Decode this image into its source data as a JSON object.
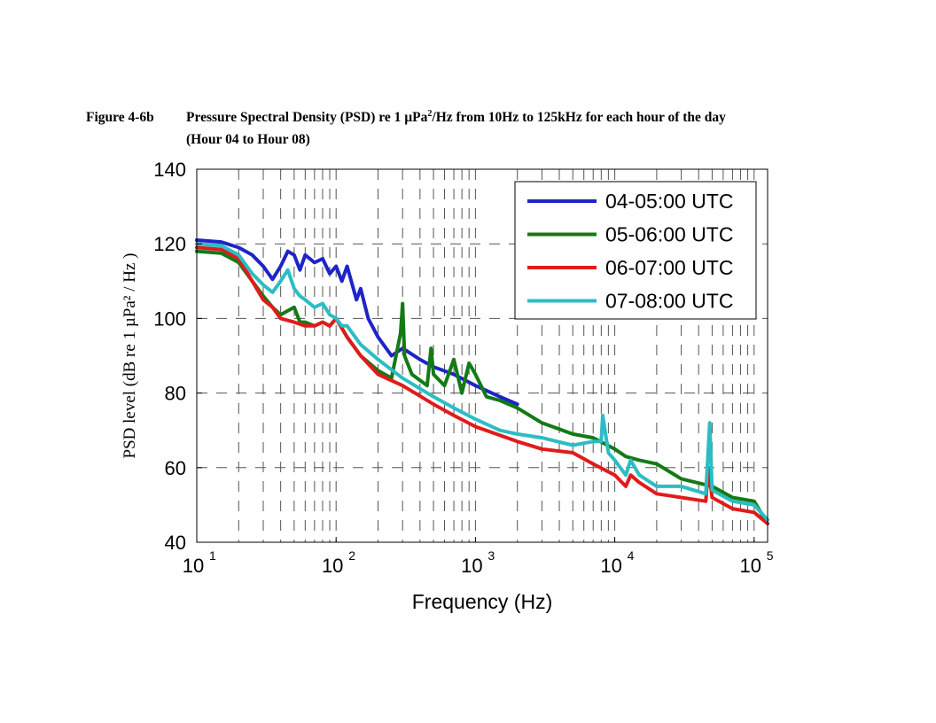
{
  "caption": {
    "figure_number": "Figure 4-6b",
    "title_part1": "Pressure Spectral Density (PSD) re 1 µPa",
    "title_sup": "2",
    "title_part2": "/Hz from 10Hz to 125kHz for each hour of the day",
    "title_line2": "(Hour 04 to Hour 08)"
  },
  "chart_data": {
    "type": "line",
    "xscale": "log",
    "xlabel": "Frequency (Hz)",
    "ylabel": "PSD level (dB re 1  µPa² / Hz )",
    "xlim": [
      10,
      125000
    ],
    "ylim": [
      40,
      140
    ],
    "x_ticks": [
      10,
      100,
      1000,
      10000,
      100000
    ],
    "x_tick_labels": [
      {
        "base": "10",
        "exp": "1"
      },
      {
        "base": "10",
        "exp": "2"
      },
      {
        "base": "10",
        "exp": "3"
      },
      {
        "base": "10",
        "exp": "4"
      },
      {
        "base": "10",
        "exp": "5"
      }
    ],
    "y_ticks": [
      40,
      60,
      80,
      100,
      120,
      140
    ],
    "grid": true,
    "legend_position": "top-right",
    "series": [
      {
        "name": "04-05:00 UTC",
        "color": "#1f24c8",
        "x": [
          10,
          15,
          20,
          25,
          30,
          35,
          40,
          45,
          50,
          55,
          60,
          70,
          80,
          90,
          100,
          110,
          120,
          140,
          150,
          170,
          200,
          250,
          300,
          400,
          500,
          700,
          1000,
          1500,
          2000
        ],
        "y": [
          121,
          120.5,
          119,
          117,
          114,
          110.5,
          114,
          118,
          117,
          113,
          117,
          115,
          116,
          112,
          114,
          110,
          114,
          105,
          108,
          100,
          95,
          90,
          92,
          89,
          87,
          85,
          82,
          79,
          77
        ]
      },
      {
        "name": "05-06:00 UTC",
        "color": "#137a16",
        "x": [
          10,
          15,
          20,
          25,
          30,
          35,
          40,
          50,
          55,
          60,
          70,
          80,
          90,
          100,
          120,
          150,
          200,
          250,
          290,
          300,
          310,
          350,
          450,
          480,
          500,
          600,
          700,
          800,
          900,
          1000,
          1200,
          1500,
          2000,
          3000,
          5000,
          7000,
          10000,
          12000,
          15000,
          20000,
          30000,
          50000,
          70000,
          100000,
          125000
        ],
        "y": [
          118,
          117.5,
          115,
          110,
          106,
          103,
          101,
          103,
          99,
          99,
          98,
          99,
          98,
          100,
          95,
          90,
          86,
          84,
          96,
          104,
          90,
          85,
          82,
          92,
          85,
          82,
          89,
          80,
          88,
          85,
          79,
          78,
          76,
          72,
          69,
          68,
          65,
          63,
          62,
          61,
          57,
          55,
          52,
          51,
          45
        ]
      },
      {
        "name": "06-07:00 UTC",
        "color": "#e01b1b",
        "x": [
          10,
          15,
          20,
          25,
          30,
          35,
          40,
          50,
          60,
          70,
          80,
          90,
          100,
          120,
          150,
          200,
          300,
          500,
          700,
          1000,
          2000,
          3000,
          5000,
          7000,
          10000,
          12000,
          13000,
          15000,
          20000,
          30000,
          45000,
          47000,
          50000,
          70000,
          100000,
          125000
        ],
        "y": [
          119,
          118.5,
          116,
          110,
          105,
          103,
          100,
          99,
          98,
          98,
          99,
          98,
          100,
          95,
          90,
          85,
          82,
          77,
          74,
          71,
          67,
          65,
          64,
          61,
          58,
          55,
          58,
          56,
          53,
          52,
          51,
          60,
          52,
          49,
          48,
          45
        ]
      },
      {
        "name": "07-08:00 UTC",
        "color": "#2bbdc4",
        "x": [
          10,
          15,
          20,
          25,
          30,
          35,
          40,
          45,
          50,
          55,
          60,
          70,
          80,
          90,
          100,
          110,
          120,
          150,
          200,
          300,
          500,
          700,
          1000,
          1500,
          2000,
          3000,
          5000,
          7000,
          8000,
          8200,
          9000,
          10000,
          12000,
          13000,
          15000,
          20000,
          30000,
          45000,
          48000,
          50000,
          70000,
          100000,
          125000
        ],
        "y": [
          120,
          119.5,
          117,
          112,
          109,
          107,
          110,
          113,
          108,
          106,
          105,
          103,
          104,
          101,
          100,
          98,
          98,
          93,
          89,
          84,
          79,
          76,
          73,
          70,
          69,
          68,
          66,
          67,
          67,
          74,
          64,
          62,
          58,
          62,
          58,
          55,
          55,
          53,
          72,
          54,
          51,
          50,
          46
        ]
      }
    ]
  }
}
